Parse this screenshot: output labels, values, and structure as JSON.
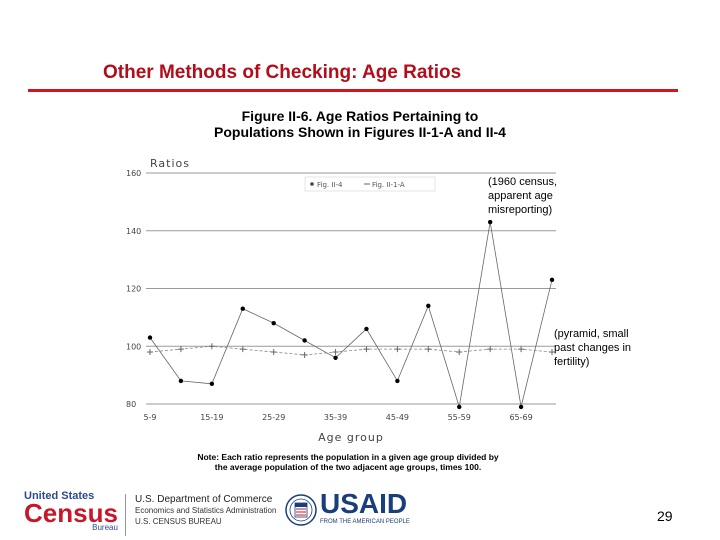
{
  "slide": {
    "title": "Other Methods of Checking: Age Ratios",
    "page_number": "29",
    "colors": {
      "title": "#b30d1a",
      "rule": "#d4161c"
    }
  },
  "figure": {
    "title_line1": "Figure II-6.  Age Ratios Pertaining to",
    "title_line2": "Populations Shown in Figures II-1-A and II-4",
    "annotation_top": [
      "(1960 census,",
      "apparent age",
      "misreporting)"
    ],
    "annotation_bottom": [
      "(pyramid, small",
      "past changes in",
      "fertility)"
    ],
    "note_line1": "Note: Each ratio represents the population in a given age group divided by",
    "note_line2": "the average population of the two adjacent age groups, times 100."
  },
  "chart_data": {
    "type": "line",
    "ylabel": "Ratios",
    "xlabel": "Age group",
    "ylim": [
      80,
      160
    ],
    "yticks": [
      "80",
      "100",
      "120",
      "140",
      "160"
    ],
    "grid": true,
    "legend": "top",
    "categories": [
      "5-9",
      "10-14",
      "15-19",
      "20-24",
      "25-29",
      "30-34",
      "35-39",
      "40-44",
      "45-49",
      "50-54",
      "55-59",
      "60-64",
      "65-69",
      "70-74"
    ],
    "xtick_labels": [
      "5-9",
      "15-19",
      "25-29",
      "35-39",
      "45-49",
      "55-59",
      "65-69"
    ],
    "series": [
      {
        "name": "Fig. II-4",
        "marker": "dot",
        "color": "#000000",
        "values": [
          103,
          88,
          87,
          113,
          108,
          102,
          96,
          106,
          88,
          114,
          79,
          143,
          79,
          123
        ]
      },
      {
        "name": "Fig. II-1-A",
        "marker": "plus",
        "color": "#000000",
        "values": [
          98,
          99,
          100,
          99,
          98,
          97,
          98,
          99,
          99,
          99,
          98,
          99,
          99,
          98
        ]
      }
    ]
  },
  "footer": {
    "census_top": "United States",
    "census_main": "Census",
    "census_bureau": "Bureau",
    "doc_line1": "U.S. Department of Commerce",
    "doc_line2": "Economics and Statistics Administration",
    "doc_line3": "U.S. CENSUS BUREAU",
    "usaid_main": "USAID",
    "usaid_sub": "FROM THE AMERICAN PEOPLE"
  }
}
